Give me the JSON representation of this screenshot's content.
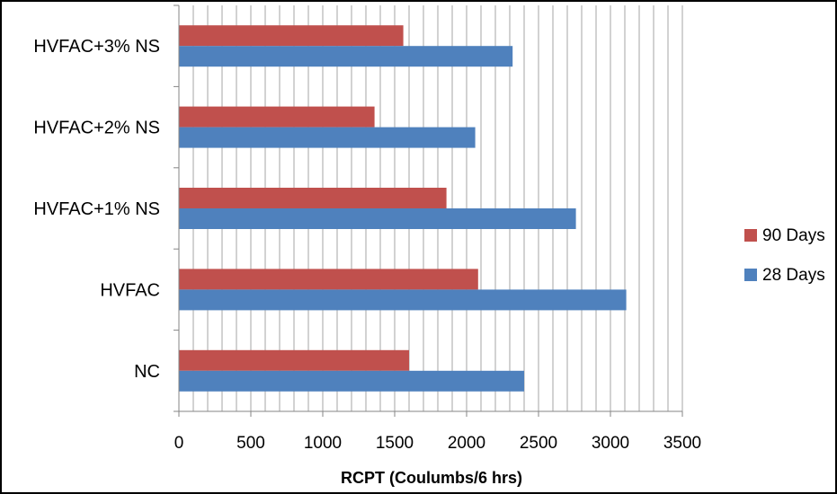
{
  "chart_data": {
    "type": "bar",
    "orientation": "horizontal",
    "title": "",
    "categories": [
      "NC",
      "HVFAC",
      "HVFAC+1% NS",
      "HVFAC+2% NS",
      "HVFAC+3% NS"
    ],
    "series": [
      {
        "name": "90 Days",
        "color": "#c0504d",
        "values": [
          1600,
          2080,
          1860,
          1360,
          1560
        ]
      },
      {
        "name": "28 Days",
        "color": "#4f81bd",
        "values": [
          2400,
          3110,
          2760,
          2060,
          2320
        ]
      }
    ],
    "xlabel": "RCPT (Coulumbs/6 hrs)",
    "ylabel": "",
    "xlim": [
      0,
      3500
    ],
    "xticks": [
      "0",
      "500",
      "1000",
      "1500",
      "2000",
      "2500",
      "3000",
      "3500"
    ],
    "grid": "vertical",
    "legend_position": "right"
  }
}
